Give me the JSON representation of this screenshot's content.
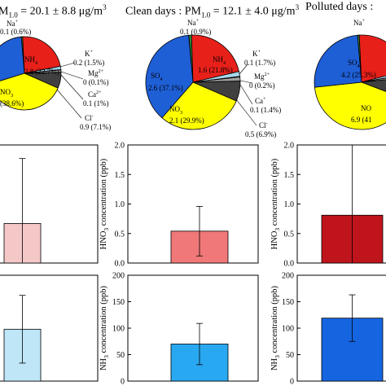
{
  "titles": {
    "all_prefix": "M",
    "all_sub": "1.0",
    "all_suffix": " = 20.1 ± 8.8 μg/m",
    "all_sup": "3",
    "clean_prefix": "Clean  days : PM",
    "clean_sub": "1.0",
    "clean_suffix": " = 12.1 ± 4.0 μg/m",
    "clean_sup": "3",
    "polluted_prefix": "Polluted days : "
  },
  "colors": {
    "na": "#2e8b3c",
    "nh4": "#e8201a",
    "k": "#a8d8ea",
    "mg": "#f2f2f2",
    "ca": "#a0a0a0",
    "cl": "#404040",
    "no3": "#ffff00",
    "so4": "#1f5fd6",
    "hno3_all": "#f5c8c8",
    "hno3_clean": "#f07878",
    "hno3_polluted": "#c0141c",
    "nh3_all": "#bfe6f7",
    "nh3_clean": "#28a8f0",
    "nh3_polluted": "#1565e0",
    "outline": "#000000"
  },
  "chart_data": [
    {
      "type": "pie",
      "panel": "all",
      "slices": [
        {
          "ion": "Na+",
          "value": 0.1,
          "label": "0.1 (0.6%)",
          "color_key": "na"
        },
        {
          "ion": "NH4+",
          "value": 2.8,
          "label": "2.8 (22.7%)",
          "color_key": "nh4"
        },
        {
          "ion": "K+",
          "value": 0.2,
          "label": "0.2 (1.5%)",
          "color_key": "k"
        },
        {
          "ion": "Mg2+",
          "value": 0.0,
          "label": "0 (0.1%)",
          "color_key": "mg"
        },
        {
          "ion": "Ca2+",
          "value": 0.1,
          "label": "0.1 (1%)",
          "color_key": "ca"
        },
        {
          "ion": "Cl-",
          "value": 0.9,
          "label": "0.9 (7.1%)",
          "color_key": "cl"
        },
        {
          "ion": "NO3-",
          "value": 4.8,
          "label": "(38.6%)",
          "color_key": "no3"
        },
        {
          "ion": "SO42-",
          "value": 3.5,
          "label": "",
          "color_key": "so4"
        }
      ],
      "percents": [
        0.6,
        22.7,
        1.5,
        0.1,
        1.0,
        7.1,
        38.6,
        28.4
      ]
    },
    {
      "type": "pie",
      "panel": "clean",
      "slices": [
        {
          "ion": "Na+",
          "value": 0.1,
          "label": "0.1 (0.9%)",
          "color_key": "na"
        },
        {
          "ion": "NH4+",
          "value": 1.6,
          "label": "1.6 (21.8%)",
          "color_key": "nh4"
        },
        {
          "ion": "K+",
          "value": 0.1,
          "label": "0.1 (1.7%)",
          "color_key": "k"
        },
        {
          "ion": "Mg2+",
          "value": 0.0,
          "label": "0 (0.2%)",
          "color_key": "mg"
        },
        {
          "ion": "Ca+",
          "value": 0.1,
          "label": "0.1 (1.4%)",
          "color_key": "ca"
        },
        {
          "ion": "Cl-",
          "value": 0.5,
          "label": "0.5 (6.9%)",
          "color_key": "cl"
        },
        {
          "ion": "NO3-",
          "value": 2.1,
          "label": "2.1 (29.9%)",
          "color_key": "no3"
        },
        {
          "ion": "SO42-",
          "value": 2.6,
          "label": "2.6 (37.1%)",
          "color_key": "so4"
        }
      ],
      "percents": [
        0.9,
        21.8,
        1.7,
        0.2,
        1.4,
        6.9,
        29.9,
        37.1
      ]
    },
    {
      "type": "pie",
      "panel": "polluted",
      "slices": [
        {
          "ion": "Na+",
          "value": 0.1,
          "label": "",
          "color_key": "na"
        },
        {
          "ion": "NH4+",
          "value": 3.6,
          "label": "",
          "color_key": "nh4"
        },
        {
          "ion": "K+",
          "value": 0.2,
          "label": "",
          "color_key": "k"
        },
        {
          "ion": "Mg2+",
          "value": 0.0,
          "label": "",
          "color_key": "mg"
        },
        {
          "ion": "Ca2+",
          "value": 0.2,
          "label": "",
          "color_key": "ca"
        },
        {
          "ion": "Cl-",
          "value": 1.2,
          "label": "",
          "color_key": "cl"
        },
        {
          "ion": "NO3-",
          "value": 6.9,
          "label": "6.9 (41",
          "color_key": "no3"
        },
        {
          "ion": "SO42-",
          "value": 4.2,
          "label": "4.2 (25.3%)",
          "color_key": "so4"
        }
      ],
      "percents": [
        0.6,
        21.7,
        1.3,
        0.1,
        1.0,
        7.5,
        42.5,
        25.3
      ]
    },
    {
      "type": "bar",
      "panel": "hno3-all",
      "value": 0.67,
      "error": 1.1,
      "ylim": [
        0,
        2.0
      ],
      "yticks": [
        "0.0",
        "0.5",
        "1.0",
        "1.5",
        "2.0"
      ],
      "ylabel": "",
      "color_key": "hno3_all"
    },
    {
      "type": "bar",
      "panel": "hno3-clean",
      "value": 0.54,
      "error": 0.42,
      "ylim": [
        0,
        2.0
      ],
      "yticks": [
        "0.0",
        "0.5",
        "1.0",
        "1.5",
        "2.0"
      ],
      "ylabel": "HNO3 concentration (ppb)",
      "color_key": "hno3_clean"
    },
    {
      "type": "bar",
      "panel": "hno3-polluted",
      "value": 0.81,
      "error": 1.2,
      "ylim": [
        0,
        2.0
      ],
      "yticks": [
        "0.0",
        "0.5",
        "1.0",
        "1.5",
        "2.0"
      ],
      "ylabel": "HNO3 concentration (ppb)",
      "color_key": "hno3_polluted"
    },
    {
      "type": "bar",
      "panel": "nh3-all",
      "value": 98,
      "error": 64,
      "ylim": [
        0,
        200
      ],
      "yticks": [
        "0",
        "50",
        "100",
        "150",
        "200"
      ],
      "ylabel": "",
      "color_key": "nh3_all"
    },
    {
      "type": "bar",
      "panel": "nh3-clean",
      "value": 70,
      "error": 39,
      "ylim": [
        0,
        200
      ],
      "yticks": [
        "0",
        "50",
        "100",
        "150",
        "200"
      ],
      "ylabel": "NH3 concentration (ppb)",
      "color_key": "nh3_clean"
    },
    {
      "type": "bar",
      "panel": "nh3-polluted",
      "value": 119,
      "error": 44,
      "ylim": [
        0,
        200
      ],
      "yticks": [
        "0",
        "50",
        "100",
        "150",
        "200"
      ],
      "ylabel": "NH3 concentration (ppb)",
      "color_key": "nh3_polluted"
    }
  ]
}
